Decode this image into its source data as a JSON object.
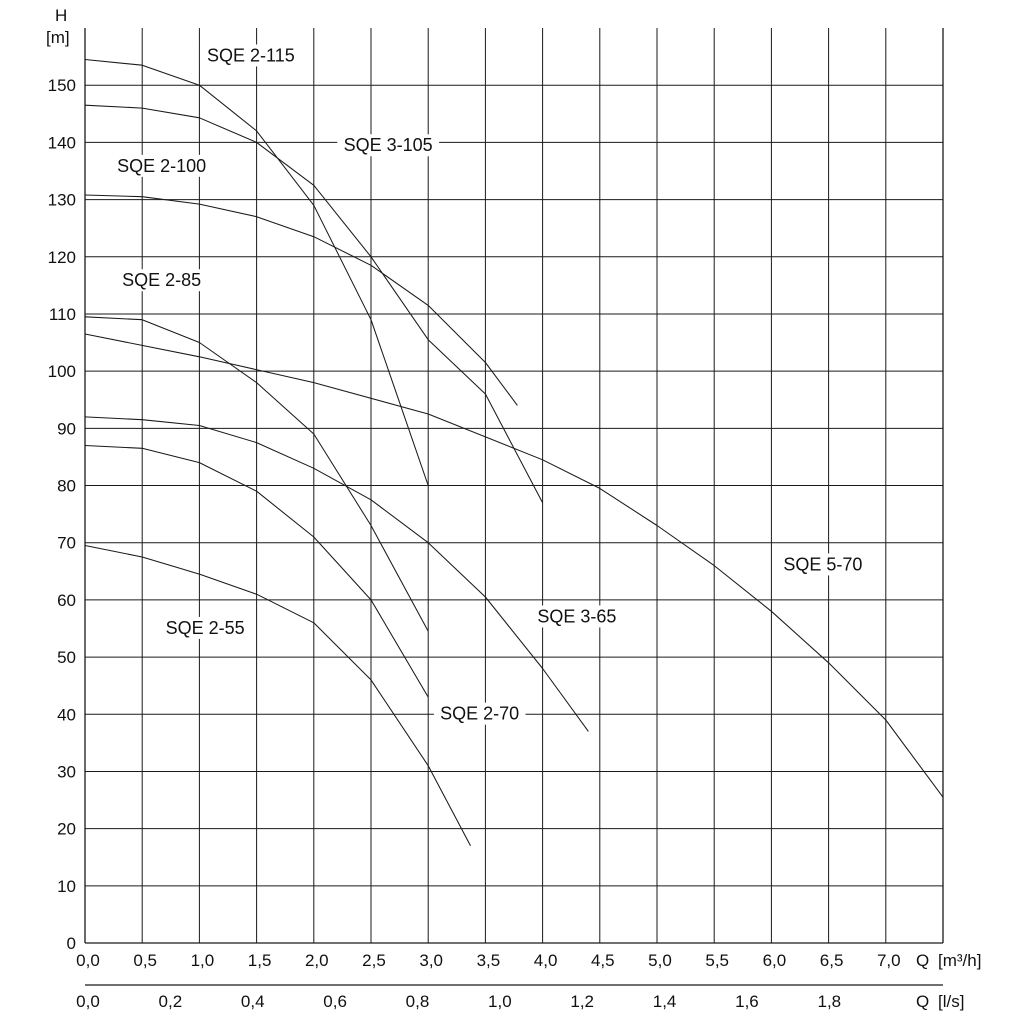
{
  "chart_data": {
    "type": "line",
    "title": "",
    "ylabel_top": "H",
    "ylabel_unit": "[m]",
    "xlabel": "Q",
    "x_unit": "[m³/h]",
    "x2label": "Q",
    "x2_unit": "[l/s]",
    "xlim": [
      0,
      7.5
    ],
    "ylim": [
      0,
      160
    ],
    "x2lim": [
      0,
      2.08333
    ],
    "grid": true,
    "x_ticks": [
      {
        "v": 0,
        "t": "0,0"
      },
      {
        "v": 0.5,
        "t": "0,5"
      },
      {
        "v": 1,
        "t": "1,0"
      },
      {
        "v": 1.5,
        "t": "1,5"
      },
      {
        "v": 2,
        "t": "2,0"
      },
      {
        "v": 2.5,
        "t": "2,5"
      },
      {
        "v": 3,
        "t": "3,0"
      },
      {
        "v": 3.5,
        "t": "3,5"
      },
      {
        "v": 4,
        "t": "4,0"
      },
      {
        "v": 4.5,
        "t": "4,5"
      },
      {
        "v": 5,
        "t": "5,0"
      },
      {
        "v": 5.5,
        "t": "5,5"
      },
      {
        "v": 6,
        "t": "6,0"
      },
      {
        "v": 6.5,
        "t": "6,5"
      },
      {
        "v": 7,
        "t": "7,0"
      }
    ],
    "x2_ticks": [
      {
        "v": 0,
        "t": "0,0"
      },
      {
        "v": 0.2,
        "t": "0,2"
      },
      {
        "v": 0.4,
        "t": "0,4"
      },
      {
        "v": 0.6,
        "t": "0,6"
      },
      {
        "v": 0.8,
        "t": "0,8"
      },
      {
        "v": 1.0,
        "t": "1,0"
      },
      {
        "v": 1.2,
        "t": "1,2"
      },
      {
        "v": 1.4,
        "t": "1,4"
      },
      {
        "v": 1.6,
        "t": "1,6"
      },
      {
        "v": 1.8,
        "t": "1,8"
      }
    ],
    "y_ticks": [
      {
        "v": 0,
        "t": "0"
      },
      {
        "v": 10,
        "t": "10"
      },
      {
        "v": 20,
        "t": "20"
      },
      {
        "v": 30,
        "t": "30"
      },
      {
        "v": 40,
        "t": "40"
      },
      {
        "v": 50,
        "t": "50"
      },
      {
        "v": 60,
        "t": "60"
      },
      {
        "v": 70,
        "t": "70"
      },
      {
        "v": 80,
        "t": "80"
      },
      {
        "v": 90,
        "t": "90"
      },
      {
        "v": 100,
        "t": "100"
      },
      {
        "v": 110,
        "t": "110"
      },
      {
        "v": 120,
        "t": "120"
      },
      {
        "v": 130,
        "t": "130"
      },
      {
        "v": 140,
        "t": "140"
      },
      {
        "v": 150,
        "t": "150"
      }
    ],
    "series": [
      {
        "name": "SQE 2-115",
        "label_at": [
          1.45,
          154.5
        ],
        "x": [
          0,
          0.5,
          1.0,
          1.5,
          2.0,
          2.5,
          3.0
        ],
        "y": [
          154.5,
          153.5,
          150,
          142,
          129,
          109,
          80
        ]
      },
      {
        "name": "SQE 2-100",
        "label_at": [
          0.67,
          135.2
        ],
        "x": [
          0,
          0.5,
          1.0,
          1.5,
          2.0,
          2.5,
          3.0,
          3.5,
          4.0
        ],
        "y": [
          146.5,
          146,
          144.3,
          140,
          132.5,
          120,
          105.5,
          96,
          77
        ]
      },
      {
        "name": "SQE 3-105",
        "label_at": [
          2.65,
          138.8
        ],
        "x": [
          0,
          0.5,
          1.0,
          1.5,
          2.0,
          2.5,
          3.0,
          3.5,
          3.78
        ],
        "y": [
          130.8,
          130.5,
          129.2,
          127,
          123.5,
          118.5,
          111.5,
          101.5,
          94
        ]
      },
      {
        "name": "SQE 2-85",
        "label_at": [
          0.67,
          115.2
        ],
        "x": [
          0,
          0.5,
          1.0,
          1.5,
          2.0,
          2.5,
          3.0
        ],
        "y": [
          109.5,
          109,
          105,
          98,
          89,
          73,
          54.5
        ]
      },
      {
        "name": "SQE 5-70",
        "label_at": [
          6.45,
          65.5
        ],
        "x": [
          0,
          1.0,
          2.0,
          3.0,
          4.0,
          4.5,
          5.0,
          5.5,
          6.0,
          6.5,
          7.0,
          7.5
        ],
        "y": [
          106.5,
          102.5,
          98,
          92.5,
          84.5,
          79.5,
          73,
          66,
          58,
          49,
          39,
          25.5
        ]
      },
      {
        "name": "SQE 3-65",
        "label_at": [
          4.3,
          56.4
        ],
        "x": [
          0,
          0.5,
          1.0,
          1.5,
          2.0,
          2.5,
          3.0,
          3.5,
          4.0,
          4.4
        ],
        "y": [
          92,
          91.5,
          90.5,
          87.5,
          83,
          77.5,
          70,
          60.5,
          48,
          37
        ]
      },
      {
        "name": "SQE 2-70",
        "label_at": [
          3.45,
          39.4
        ],
        "x": [
          0,
          0.5,
          1.0,
          1.5,
          2.0,
          2.5,
          3.0
        ],
        "y": [
          87,
          86.5,
          84,
          79,
          71,
          60,
          43
        ]
      },
      {
        "name": "SQE 2-55",
        "label_at": [
          1.05,
          54.4
        ],
        "x": [
          0,
          0.5,
          1.0,
          1.5,
          2.0,
          2.5,
          3.0,
          3.37
        ],
        "y": [
          69.5,
          67.5,
          64.5,
          61,
          56,
          46,
          31,
          17
        ]
      }
    ]
  }
}
